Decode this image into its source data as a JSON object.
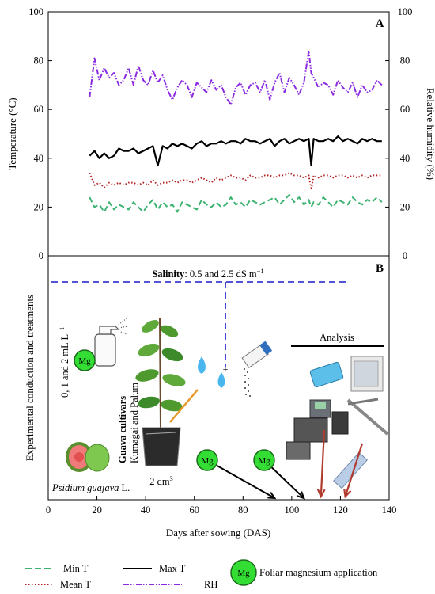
{
  "chart_data": [
    {
      "type": "line",
      "panel_label": "A",
      "xlabel": "",
      "ylabel_left": "Temperature (°C)",
      "ylabel_right": "Relative humidity (%)",
      "xlim": [
        0,
        140
      ],
      "ylim_left": [
        0,
        100
      ],
      "ylim_right": [
        0,
        100
      ],
      "x_ticks": [
        "0",
        "20",
        "40",
        "60",
        "80",
        "100",
        "120",
        "140"
      ],
      "y_ticks_left": [
        "0",
        "20",
        "40",
        "60",
        "80",
        "100"
      ],
      "y_ticks_right": [
        "0",
        "20",
        "40",
        "60",
        "80",
        "100"
      ],
      "grid": false,
      "x": [
        17,
        19,
        21,
        23,
        25,
        27,
        29,
        31,
        33,
        35,
        37,
        39,
        41,
        43,
        45,
        47,
        49,
        51,
        53,
        55,
        57,
        59,
        61,
        63,
        65,
        67,
        69,
        71,
        73,
        75,
        77,
        79,
        81,
        83,
        85,
        87,
        89,
        91,
        93,
        95,
        97,
        99,
        101,
        103,
        105,
        107,
        108,
        109,
        111,
        113,
        115,
        117,
        119,
        121,
        123,
        125,
        127,
        129,
        131,
        133,
        135,
        137
      ],
      "series": [
        {
          "name": "Min T",
          "color": "#3cb371",
          "style": "dashed",
          "values": [
            24,
            20,
            21,
            18,
            22,
            19,
            21,
            20,
            19,
            22,
            20,
            18,
            21,
            23,
            19,
            22,
            20,
            21,
            18,
            22,
            21,
            20,
            19,
            23,
            21,
            20,
            22,
            20,
            21,
            24,
            21,
            22,
            20,
            23,
            22,
            21,
            22,
            23,
            24,
            21,
            23,
            25,
            22,
            24,
            21,
            23,
            20,
            22,
            21,
            24,
            22,
            20,
            23,
            22,
            21,
            24,
            22,
            21,
            23,
            22,
            24,
            22
          ]
        },
        {
          "name": "Mean T",
          "color": "#b22222",
          "style": "dotted",
          "values": [
            34,
            29,
            30,
            28,
            30,
            29,
            30,
            29,
            30,
            30,
            29,
            30,
            29,
            31,
            29,
            30,
            30,
            31,
            30,
            31,
            31,
            30,
            31,
            32,
            31,
            30,
            32,
            31,
            32,
            33,
            32,
            32,
            31,
            33,
            32,
            32,
            33,
            33,
            32,
            33,
            33,
            34,
            33,
            33,
            32,
            33,
            27,
            33,
            32,
            33,
            33,
            32,
            33,
            33,
            32,
            33,
            32,
            33,
            32,
            33,
            33,
            33
          ]
        },
        {
          "name": "Max T",
          "color": "#000000",
          "style": "solid",
          "values": [
            41,
            43,
            40,
            42,
            40,
            41,
            44,
            43,
            43,
            44,
            42,
            43,
            44,
            45,
            37,
            45,
            44,
            46,
            45,
            46,
            45,
            44,
            46,
            47,
            45,
            46,
            46,
            47,
            46,
            47,
            47,
            46,
            48,
            47,
            47,
            46,
            47,
            48,
            45,
            47,
            48,
            46,
            47,
            48,
            47,
            48,
            37,
            48,
            47,
            47,
            48,
            47,
            49,
            47,
            48,
            47,
            46,
            48,
            47,
            48,
            47,
            47
          ]
        },
        {
          "name": "RH",
          "color": "#8a2be2",
          "style": "dashdot",
          "values": [
            65,
            81,
            72,
            77,
            73,
            75,
            70,
            72,
            77,
            70,
            78,
            72,
            70,
            76,
            71,
            74,
            68,
            64,
            69,
            72,
            70,
            65,
            71,
            69,
            67,
            72,
            68,
            70,
            65,
            62,
            69,
            71,
            66,
            70,
            71,
            67,
            72,
            64,
            71,
            75,
            67,
            73,
            70,
            66,
            71,
            84,
            75,
            73,
            69,
            71,
            70,
            66,
            72,
            69,
            67,
            71,
            65,
            70,
            67,
            68,
            72,
            70
          ]
        }
      ]
    },
    {
      "type": "timeline",
      "panel_label": "B",
      "xlabel": "Days after sowing (DAS)",
      "ylabel": "Experimental conduction and treatments",
      "xlim": [
        0,
        140
      ],
      "x_ticks": [
        "0",
        "20",
        "40",
        "60",
        "80",
        "100",
        "120",
        "140"
      ],
      "salinity_bold": "Salinity",
      "salinity_text": ": 0.5 and 2.5 dS m",
      "salinity_exp": "−1",
      "mg_doses": "0, 1 and 2 mL L",
      "mg_doses_exp": "−1",
      "cultivars_title": "Guava cultivars",
      "cultivars_names": "Kumagai and Palum",
      "pot_volume": "2 dm",
      "pot_volume_exp": "3",
      "species": "Psidium guajava",
      "species_author": " L.",
      "analysis_label": "Analysis",
      "mg_badge": "Mg",
      "foliar_application_das": [
        93,
        105
      ],
      "analysis_das": [
        112,
        122
      ]
    }
  ],
  "legend": {
    "min_t": "Min T",
    "mean_t": "Mean T",
    "max_t": "Max T",
    "rh": "RH",
    "mg_badge": "Mg",
    "foliar": "Foliar magnesium application"
  },
  "colors": {
    "mg_green": "#33dd33",
    "salinity_line": "#1a1acc",
    "arrow_red": "#b03a2e",
    "water_blue": "#49b6ee",
    "plant_green": "#3c8a2a"
  }
}
